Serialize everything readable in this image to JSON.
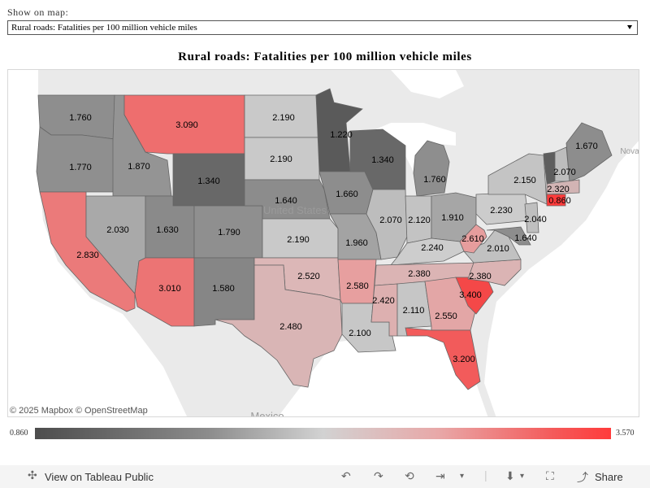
{
  "filter": {
    "label": "Show on map:",
    "selected": "Rural roads: Fatalities per 100 million vehicle miles"
  },
  "title": "Rural roads: Fatalities per 100 million vehicle miles",
  "attribution": "© 2025 Mapbox  © OpenStreetMap",
  "legend": {
    "min": "0.860",
    "max": "3.570"
  },
  "basemap_labels": {
    "country_us": "United States",
    "country_mexico": "Mexico",
    "nova": "Nova"
  },
  "toolbar": {
    "view_label": "View on Tableau Public",
    "share_label": "Share"
  },
  "states": [
    {
      "abbr": "WA",
      "value": "1.760"
    },
    {
      "abbr": "OR",
      "value": "1.770"
    },
    {
      "abbr": "CA",
      "value": "2.830"
    },
    {
      "abbr": "ID",
      "value": "1.870"
    },
    {
      "abbr": "NV",
      "value": "2.030"
    },
    {
      "abbr": "MT",
      "value": "3.090"
    },
    {
      "abbr": "WY",
      "value": "1.340"
    },
    {
      "abbr": "UT",
      "value": "1.630"
    },
    {
      "abbr": "AZ",
      "value": "3.010"
    },
    {
      "abbr": "CO",
      "value": "1.790"
    },
    {
      "abbr": "NM",
      "value": "1.580"
    },
    {
      "abbr": "ND",
      "value": "2.190"
    },
    {
      "abbr": "SD",
      "value": "2.190"
    },
    {
      "abbr": "NE",
      "value": "1.640"
    },
    {
      "abbr": "KS",
      "value": "2.190"
    },
    {
      "abbr": "OK",
      "value": "2.520"
    },
    {
      "abbr": "TX",
      "value": "2.480"
    },
    {
      "abbr": "MN",
      "value": "1.220"
    },
    {
      "abbr": "IA",
      "value": "1.660"
    },
    {
      "abbr": "MO",
      "value": "1.960"
    },
    {
      "abbr": "AR",
      "value": "2.580"
    },
    {
      "abbr": "LA",
      "value": "2.100"
    },
    {
      "abbr": "WI",
      "value": "1.340"
    },
    {
      "abbr": "IL",
      "value": "2.070"
    },
    {
      "abbr": "MI",
      "value": "1.760"
    },
    {
      "abbr": "IN",
      "value": "2.120"
    },
    {
      "abbr": "OH",
      "value": "1.910"
    },
    {
      "abbr": "KY",
      "value": "2.240"
    },
    {
      "abbr": "TN",
      "value": "2.380"
    },
    {
      "abbr": "MS",
      "value": "2.420"
    },
    {
      "abbr": "AL",
      "value": "2.110"
    },
    {
      "abbr": "GA",
      "value": "2.550"
    },
    {
      "abbr": "FL",
      "value": "3.200"
    },
    {
      "abbr": "SC",
      "value": "3.400"
    },
    {
      "abbr": "NC",
      "value": "2.380"
    },
    {
      "abbr": "VA",
      "value": "2.010"
    },
    {
      "abbr": "WV",
      "value": "2.610"
    },
    {
      "abbr": "PA",
      "value": "2.230"
    },
    {
      "abbr": "NY",
      "value": "2.150"
    },
    {
      "abbr": "VT",
      "value": "2.070"
    },
    {
      "abbr": "ME",
      "value": "1.670"
    },
    {
      "abbr": "MA",
      "value": "2.320"
    },
    {
      "abbr": "CT",
      "value": "0.860"
    },
    {
      "abbr": "NJ",
      "value": "2.040"
    },
    {
      "abbr": "MD",
      "value": "1.640"
    }
  ],
  "colors": {
    "min": "#4d4d4d",
    "mid": "#d2d2d2",
    "max": "#ff3b3b",
    "water": "#ffffff",
    "land": "#eaeaea"
  }
}
